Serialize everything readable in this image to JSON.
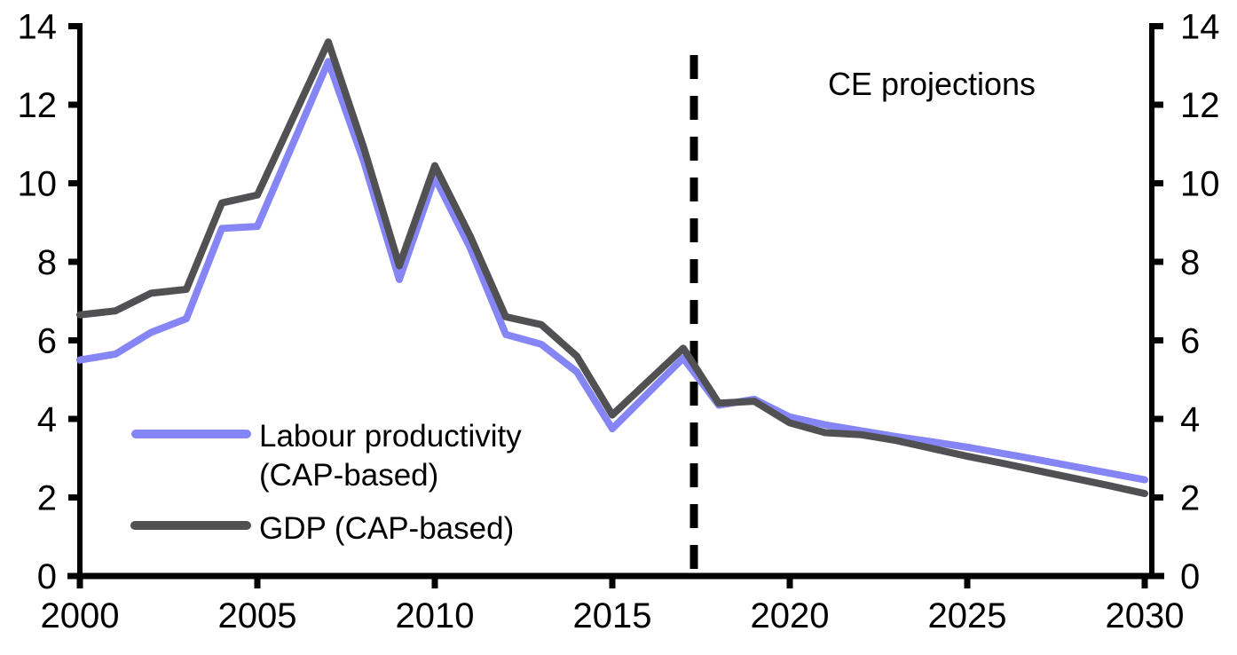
{
  "chart_data": {
    "type": "line",
    "title": "",
    "xlabel": "",
    "ylabel": "",
    "x": [
      2000,
      2001,
      2002,
      2003,
      2004,
      2005,
      2006,
      2007,
      2008,
      2009,
      2010,
      2011,
      2012,
      2013,
      2014,
      2015,
      2016,
      2017,
      2018,
      2019,
      2020,
      2021,
      2022,
      2023,
      2024,
      2025,
      2026,
      2027,
      2028,
      2029,
      2030
    ],
    "series": [
      {
        "name": "Labour productivity (CAP-based)",
        "color": "#8585F5",
        "values": [
          5.5,
          5.65,
          6.2,
          6.55,
          8.85,
          8.9,
          11.0,
          13.1,
          10.55,
          7.55,
          10.15,
          8.35,
          6.15,
          5.9,
          5.2,
          3.75,
          4.65,
          5.55,
          4.35,
          4.5,
          4.05,
          3.85,
          3.7,
          3.55,
          3.42,
          3.28,
          3.12,
          2.96,
          2.79,
          2.62,
          2.45
        ]
      },
      {
        "name": "GDP (CAP-based)",
        "color": "#515153",
        "values": [
          6.65,
          6.75,
          7.2,
          7.3,
          9.5,
          9.7,
          11.65,
          13.6,
          10.9,
          7.9,
          10.45,
          8.65,
          6.6,
          6.4,
          5.6,
          4.1,
          4.95,
          5.8,
          4.4,
          4.45,
          3.9,
          3.65,
          3.6,
          3.45,
          3.25,
          3.05,
          2.87,
          2.68,
          2.49,
          2.3,
          2.1
        ]
      }
    ],
    "xlim": [
      2000,
      2030
    ],
    "ylim": [
      0,
      14
    ],
    "xticks": [
      2000,
      2005,
      2010,
      2015,
      2020,
      2025,
      2030
    ],
    "yticks": [
      0,
      2,
      4,
      6,
      8,
      10,
      12,
      14
    ],
    "grid": false,
    "dual_y_axis": true,
    "legend_position": "inside-bottom-left",
    "projection_divider_year": 2017.3,
    "annotation": "CE projections"
  },
  "legend": {
    "labour_line1": "Labour productivity",
    "labour_line2": "(CAP-based)",
    "gdp": "GDP (CAP-based)"
  },
  "annotation": {
    "label": "CE projections"
  },
  "colors": {
    "labour": "#8585F5",
    "gdp": "#515153",
    "axis": "#000000",
    "divider": "#000000"
  }
}
